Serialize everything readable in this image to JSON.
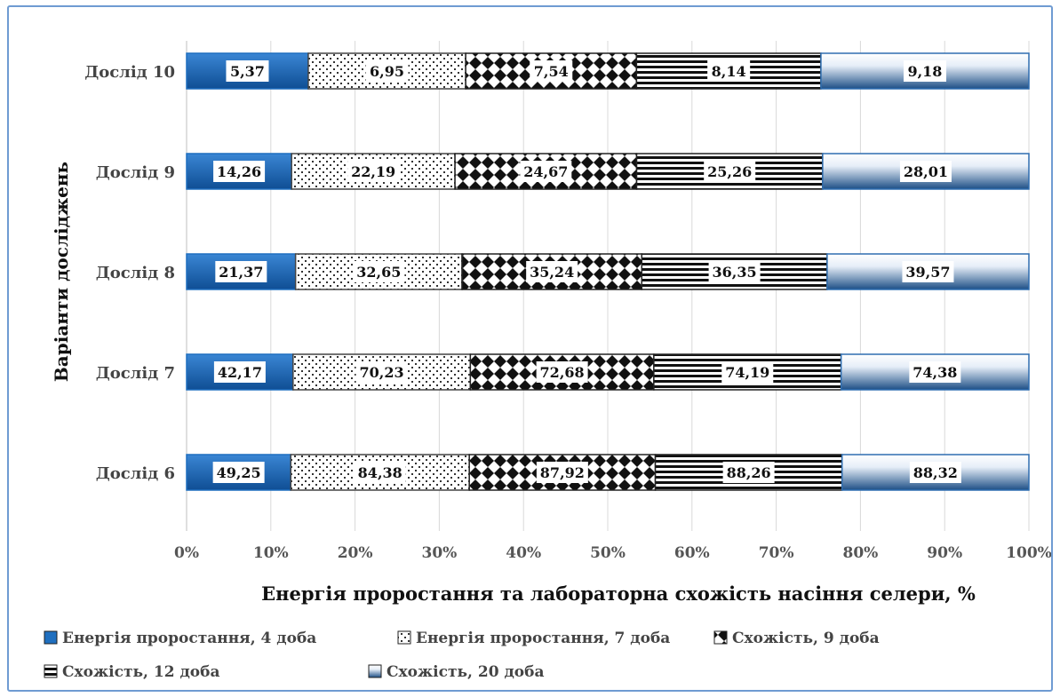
{
  "chart_data": {
    "type": "bar",
    "stacked": "percent",
    "orientation": "horizontal",
    "categories": [
      "Дослід 10",
      "Дослід 9",
      "Дослід 8",
      "Дослід 7",
      "Дослід 6"
    ],
    "series": [
      {
        "name": "Енергія проростання, 4 доба",
        "values": [
          5.37,
          14.26,
          21.37,
          42.17,
          49.25
        ],
        "labels": [
          "5,37",
          "14,26",
          "21,37",
          "42,17",
          "49,25"
        ],
        "color": "#1f6fbf",
        "pattern": "solid-gradient"
      },
      {
        "name": "Енергія проростання, 7 доба",
        "values": [
          6.95,
          22.19,
          32.65,
          70.23,
          84.38
        ],
        "labels": [
          "6,95",
          "22,19",
          "32,65",
          "70,23",
          "84,38"
        ],
        "color": "#555555",
        "pattern": "dots"
      },
      {
        "name": "Схожість, 9 доба",
        "values": [
          7.54,
          24.67,
          35.24,
          72.68,
          87.92
        ],
        "labels": [
          "7,54",
          "24,67",
          "35,24",
          "72,68",
          "87,92"
        ],
        "color": "#111111",
        "pattern": "diamonds"
      },
      {
        "name": "Схожість, 12 доба",
        "values": [
          8.14,
          25.26,
          36.35,
          74.19,
          88.26
        ],
        "labels": [
          "8,14",
          "25,26",
          "36,35",
          "74,19",
          "88,26"
        ],
        "color": "#111111",
        "pattern": "horizontal-lines"
      },
      {
        "name": "Схожість, 20 доба",
        "values": [
          9.18,
          28.01,
          39.57,
          74.38,
          88.32
        ],
        "labels": [
          "9,18",
          "28,01",
          "39,57",
          "74,38",
          "88,32"
        ],
        "color": "#2e5f92",
        "pattern": "gradient"
      }
    ],
    "xlabel": "Енергія проростання та лабораторна схожість насіння селери, %",
    "ylabel": "Варіанти досліджень",
    "xlim": [
      0,
      100
    ],
    "xticks": [
      "0%",
      "10%",
      "20%",
      "30%",
      "40%",
      "50%",
      "60%",
      "70%",
      "80%",
      "90%",
      "100%"
    ],
    "grid": true,
    "legend_position": "bottom"
  }
}
